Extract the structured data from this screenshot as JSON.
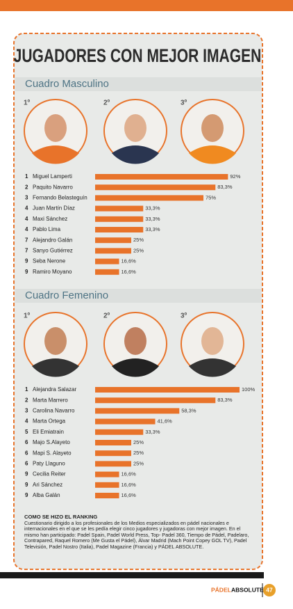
{
  "title": "JUGADORES CON MEJOR IMAGEN",
  "chart_data": [
    {
      "type": "bar",
      "orientation": "horizontal",
      "title": "Cuadro Masculino",
      "podium": [
        "1º",
        "2º",
        "3º"
      ],
      "ranks": [
        "1",
        "2",
        "3",
        "4",
        "4",
        "4",
        "7",
        "7",
        "9",
        "9"
      ],
      "categories": [
        "Miguel Lamperti",
        "Paquito Navarro",
        "Fernando Belasteguín",
        "Juan Martín Díaz",
        "Maxi Sánchez",
        "Pablo Lima",
        "Alejandro Galán",
        "Sanyo Gutiérrez",
        "Seba Nerone",
        "Ramiro Moyano"
      ],
      "values": [
        92,
        83.3,
        75,
        33.3,
        33.3,
        33.3,
        25,
        25,
        16.6,
        16.6
      ],
      "value_labels": [
        "92%",
        "83,3%",
        "75%",
        "33,3%",
        "33,3%",
        "33,3%",
        "25%",
        "25%",
        "16,6%",
        "16,6%"
      ],
      "color": "#e8732a",
      "xlim": [
        0,
        100
      ]
    },
    {
      "type": "bar",
      "orientation": "horizontal",
      "title": "Cuadro Femenino",
      "podium": [
        "1º",
        "2º",
        "3º"
      ],
      "ranks": [
        "1",
        "2",
        "3",
        "4",
        "5",
        "6",
        "6",
        "6",
        "9",
        "9",
        "9"
      ],
      "categories": [
        "Alejandra Salazar",
        "Marta Marrero",
        "Carolina Navarro",
        "Marta Ortega",
        "Eli Emiatrain",
        "Majo S.Alayeto",
        "Mapi S. Alayeto",
        "Paty Llaguno",
        "Cecilia Reiter",
        "Ari Sánchez",
        "Alba Galán"
      ],
      "values": [
        100,
        83.3,
        58.3,
        41.6,
        33.3,
        25,
        25,
        25,
        16.6,
        16.6,
        16.6
      ],
      "value_labels": [
        "100%",
        "83,3%",
        "58,3%",
        "41,6%",
        "33,3%",
        "25%",
        "25%",
        "25%",
        "16,6%",
        "16,6%",
        "16,6%"
      ],
      "color": "#e8732a",
      "xlim": [
        0,
        100
      ]
    }
  ],
  "note": {
    "heading": "COMO SE HIZO EL RANKING",
    "text": "Cuestionario dirigido a los profesionales de los Medios especializados en pádel nacionales e internacionales en el que se les pedía elegir cinco jugadores y jugadoras con mejor imagen. En el mismo han participado: Padel Spain, Padel World Press, Top- Padel 360, Tiempo de Pádel, Padelaro, Contrapared, Raquel Romero (Me Gusta el Pádel), Álvar Madrid (Mach Point Copey GOL TV), Padel Televisión, Padel Nostro (Italia), Padel Magazine (Francia) y PÁDEL ABSOLUTE."
  },
  "footer": {
    "brand_first": "PÁDEL",
    "brand_second": "ABSOLUTE",
    "page": "47"
  }
}
